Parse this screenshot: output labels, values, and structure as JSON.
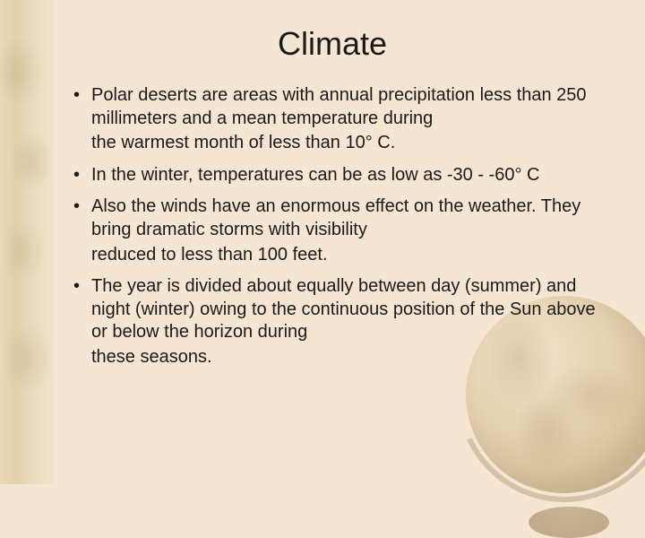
{
  "title": "Climate",
  "bullets": [
    {
      "main": "Polar deserts are areas with annual precipitation less than 250 millimeters and a mean temperature during",
      "trail": "the warmest month of less than 10° C."
    },
    {
      "main": "In the winter, temperatures can be as low as -30 - -60° C"
    },
    {
      "main": "Also the winds have an enormous effect on the weather. They bring dramatic storms with visibility",
      "trail": "reduced to less than 100 feet."
    },
    {
      "main": "The year is divided about equally between day (summer) and night (winter) owing to the continuous position of the Sun above or below the horizon during",
      "trail": "these seasons."
    }
  ],
  "colors": {
    "background": "#f5e6d3",
    "text": "#1a1a1a"
  },
  "typography": {
    "title_fontsize": 36,
    "body_fontsize": 20,
    "font_family": "Arial"
  }
}
